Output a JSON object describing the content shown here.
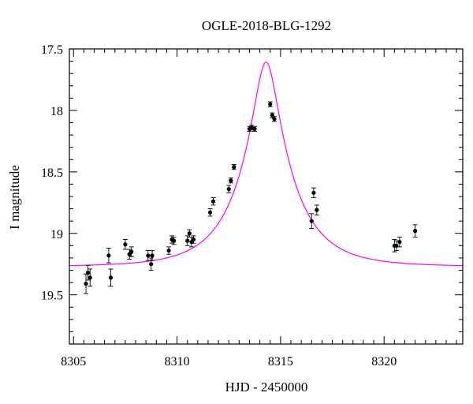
{
  "chart_data": {
    "type": "scatter",
    "title": "OGLE-2018-BLG-1292",
    "xlabel": "HJD - 2450000",
    "ylabel": "I magnitude",
    "xlim": [
      8304.8,
      8323.8
    ],
    "ylim": [
      19.9,
      17.5
    ],
    "y_inverted": true,
    "grid": false,
    "x_ticks": [
      8305,
      8310,
      8315,
      8320
    ],
    "x_tick_labels": [
      "8305",
      "8310",
      "8315",
      "8320"
    ],
    "y_ticks": [
      17.5,
      18,
      18.5,
      19,
      19.5
    ],
    "y_tick_labels": [
      "17.5",
      "18",
      "18.5",
      "19",
      "19.5"
    ],
    "x_minor_step": 0.5,
    "y_minor_step": 0.1,
    "series": [
      {
        "kind": "points_with_errorbars",
        "color": "#000000",
        "points": [
          {
            "x": 8305.6,
            "y": 19.41,
            "err": 0.08
          },
          {
            "x": 8305.7,
            "y": 19.32,
            "err": 0.06
          },
          {
            "x": 8305.8,
            "y": 19.36,
            "err": 0.07
          },
          {
            "x": 8306.7,
            "y": 19.18,
            "err": 0.06
          },
          {
            "x": 8306.8,
            "y": 19.36,
            "err": 0.07
          },
          {
            "x": 8307.5,
            "y": 19.09,
            "err": 0.04
          },
          {
            "x": 8307.7,
            "y": 19.17,
            "err": 0.04
          },
          {
            "x": 8307.8,
            "y": 19.15,
            "err": 0.04
          },
          {
            "x": 8308.6,
            "y": 19.18,
            "err": 0.04
          },
          {
            "x": 8308.75,
            "y": 19.25,
            "err": 0.05
          },
          {
            "x": 8308.8,
            "y": 19.18,
            "err": 0.04
          },
          {
            "x": 8309.6,
            "y": 19.14,
            "err": 0.03
          },
          {
            "x": 8309.75,
            "y": 19.05,
            "err": 0.03
          },
          {
            "x": 8309.85,
            "y": 19.06,
            "err": 0.03
          },
          {
            "x": 8310.5,
            "y": 19.06,
            "err": 0.04
          },
          {
            "x": 8310.6,
            "y": 19.0,
            "err": 0.03
          },
          {
            "x": 8310.7,
            "y": 19.07,
            "err": 0.04
          },
          {
            "x": 8310.8,
            "y": 19.05,
            "err": 0.03
          },
          {
            "x": 8311.6,
            "y": 18.83,
            "err": 0.03
          },
          {
            "x": 8311.75,
            "y": 18.74,
            "err": 0.03
          },
          {
            "x": 8312.5,
            "y": 18.64,
            "err": 0.03
          },
          {
            "x": 8312.6,
            "y": 18.57,
            "err": 0.02
          },
          {
            "x": 8312.75,
            "y": 18.46,
            "err": 0.02
          },
          {
            "x": 8313.5,
            "y": 18.15,
            "err": 0.02
          },
          {
            "x": 8313.6,
            "y": 18.14,
            "err": 0.02
          },
          {
            "x": 8313.75,
            "y": 18.15,
            "err": 0.02
          },
          {
            "x": 8314.5,
            "y": 17.95,
            "err": 0.02
          },
          {
            "x": 8314.6,
            "y": 18.04,
            "err": 0.02
          },
          {
            "x": 8314.7,
            "y": 18.07,
            "err": 0.02
          },
          {
            "x": 8316.5,
            "y": 18.9,
            "err": 0.06
          },
          {
            "x": 8316.6,
            "y": 18.67,
            "err": 0.04
          },
          {
            "x": 8316.75,
            "y": 18.81,
            "err": 0.04
          },
          {
            "x": 8320.5,
            "y": 19.1,
            "err": 0.05
          },
          {
            "x": 8320.6,
            "y": 19.1,
            "err": 0.04
          },
          {
            "x": 8320.75,
            "y": 19.07,
            "err": 0.04
          },
          {
            "x": 8321.5,
            "y": 18.98,
            "err": 0.05
          }
        ]
      },
      {
        "kind": "model_curve",
        "color": "#ff00ff",
        "model": {
          "t0": 8314.3,
          "tE": 2.5,
          "u0": 0.22,
          "baseline": 19.27
        }
      }
    ]
  }
}
